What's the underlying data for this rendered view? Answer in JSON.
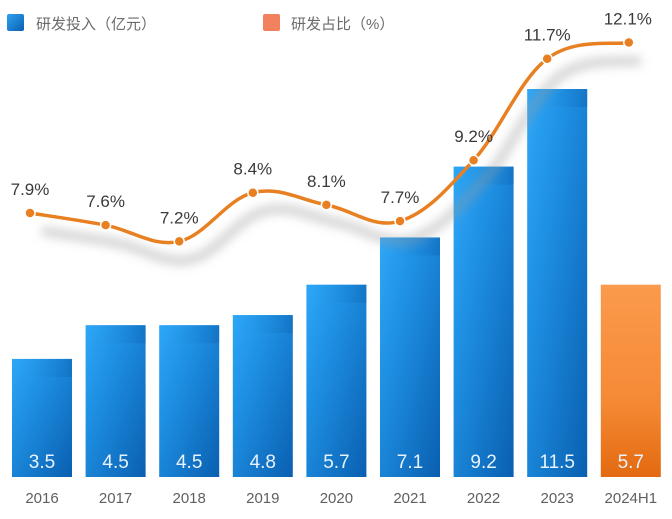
{
  "chart_data": {
    "type": "bar",
    "title": "",
    "xlabel": "",
    "ylabel": "",
    "categories": [
      "2016",
      "2017",
      "2018",
      "2019",
      "2020",
      "2021",
      "2022",
      "2023",
      "2024H1"
    ],
    "series": [
      {
        "name": "研发投入（亿元）",
        "type": "bar",
        "values": [
          3.5,
          4.5,
          4.5,
          4.8,
          5.7,
          7.1,
          9.2,
          11.5,
          5.7
        ],
        "labels": [
          "3.5",
          "4.5",
          "4.5",
          "4.8",
          "5.7",
          "7.1",
          "9.2",
          "11.5",
          "5.7"
        ]
      },
      {
        "name": "研发占比（%）",
        "type": "line",
        "values": [
          7.9,
          7.6,
          7.2,
          8.4,
          8.1,
          7.7,
          9.2,
          11.7,
          12.1
        ],
        "labels": [
          "7.9%",
          "7.6%",
          "7.2%",
          "8.4%",
          "8.1%",
          "7.7%",
          "9.2%",
          "11.7%",
          "12.1%"
        ]
      }
    ],
    "highlight_category": "2024H1",
    "legend": {
      "placement": "top-left",
      "items": [
        "研发投入（亿元）",
        "研发占比（%）"
      ]
    },
    "grid": false
  },
  "colors": {
    "bar_light": "#2ea3f2",
    "bar_dark": "#0a5fb0",
    "highlight_light": "#fb9a4c",
    "highlight_dark": "#e36a10",
    "line": "#e87f20",
    "legend_orange": "#f2825e"
  }
}
